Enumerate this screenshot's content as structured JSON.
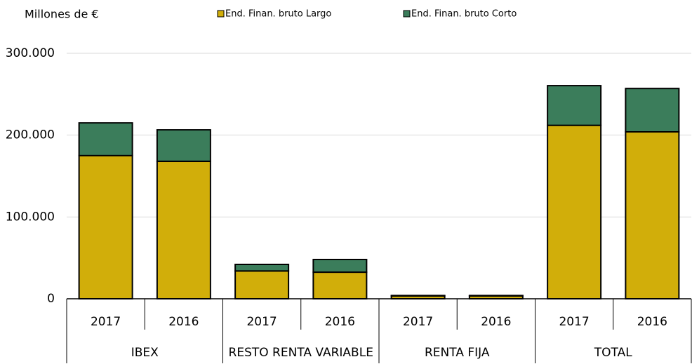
{
  "chart_data": {
    "type": "stacked_bar",
    "y_axis_label": "Millones de €",
    "categories": [
      "2017",
      "2016",
      "2017",
      "2016",
      "2017",
      "2016",
      "2017",
      "2016"
    ],
    "groups": [
      "IBEX",
      "RESTO RENTA VARIABLE",
      "RENTA FIJA",
      "TOTAL"
    ],
    "series": [
      {
        "name": "End. Finan. bruto Largo",
        "color": "#d1ae0a",
        "values": [
          175000,
          168000,
          34000,
          32500,
          3500,
          3500,
          212000,
          204000
        ]
      },
      {
        "name": "End. Finan. bruto  Corto",
        "color": "#3b7d5b",
        "values": [
          40000,
          38500,
          8000,
          15500,
          500,
          500,
          48500,
          53000
        ]
      }
    ],
    "ylim": [
      0,
      300000
    ],
    "yticks": [
      0,
      {
        "value": 100000,
        "label": "100.000"
      },
      {
        "value": 200000,
        "label": "200.000"
      },
      {
        "value": 300000,
        "label": "300.000"
      }
    ],
    "grid": true,
    "legend": "top"
  }
}
